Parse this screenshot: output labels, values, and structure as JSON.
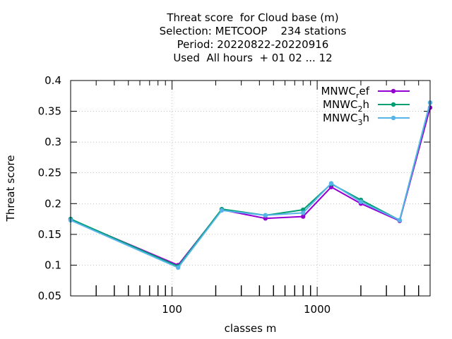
{
  "chart_data": {
    "type": "line",
    "title_lines": [
      "Threat score  for Cloud base (m)",
      "Selection: METCOOP    234 stations",
      "Period: 20220822-20220916",
      "Used  All hours  + 01 02 ... 12"
    ],
    "xlabel": "classes m",
    "ylabel": "Threat score",
    "xscale": "log",
    "xlim": [
      20,
      6000
    ],
    "ylim": [
      0.05,
      0.4
    ],
    "x_ticks": [
      100,
      1000
    ],
    "x_tick_labels": [
      "100",
      "1000"
    ],
    "y_ticks": [
      0.05,
      0.1,
      0.15,
      0.2,
      0.25,
      0.3,
      0.35,
      0.4
    ],
    "y_tick_labels": [
      "0.05",
      "0.1",
      "0.15",
      "0.2",
      "0.25",
      "0.3",
      "0.35",
      "0.4"
    ],
    "grid": true,
    "legend_position": "top-right",
    "x": [
      20,
      110,
      220,
      440,
      800,
      1250,
      2000,
      3700,
      6000
    ],
    "series": [
      {
        "name": "MNWC_ref",
        "legend_base": "MNWC",
        "legend_sub": "r",
        "legend_tail": "ef",
        "color": "#9400d3",
        "values": [
          0.174,
          0.1,
          0.19,
          0.176,
          0.179,
          0.227,
          0.2,
          0.172,
          0.356
        ]
      },
      {
        "name": "MNWC_2h",
        "legend_base": "MNWC",
        "legend_sub": "2",
        "legend_tail": "h",
        "color": "#009e73",
        "values": [
          0.175,
          0.098,
          0.191,
          0.181,
          0.19,
          0.232,
          0.206,
          0.173,
          0.364
        ]
      },
      {
        "name": "MNWC_3h",
        "legend_base": "MNWC",
        "legend_sub": "3",
        "legend_tail": "h",
        "color": "#56b4e9",
        "values": [
          0.173,
          0.096,
          0.189,
          0.181,
          0.185,
          0.233,
          0.203,
          0.173,
          0.364
        ]
      }
    ]
  }
}
